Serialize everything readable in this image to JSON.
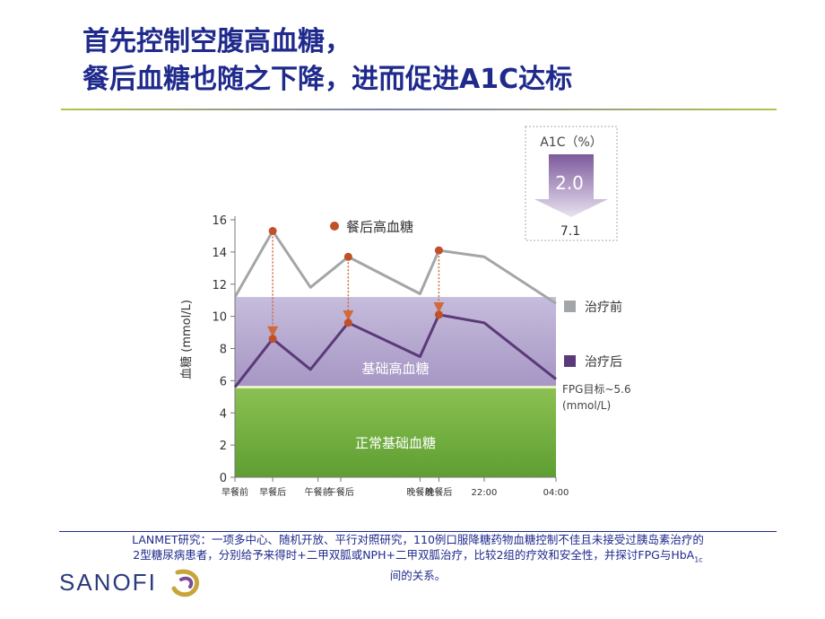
{
  "slide": {
    "title_line1": "首先控制空腹高血糖，",
    "title_line2": "餐后血糖也随之下降，进而促进A1C达标",
    "footnote_line1": "LANMET研究：一项多中心、随机开放、平行对照研究，110例口服降糖药物血糖控制不佳且未接受过胰岛素治疗的",
    "footnote_line2": "2型糖尿病患者，分别给予来得时+二甲双胍或NPH+二甲双胍治疗，比较2组的疗效和安全性，并探讨FPG与HbA",
    "footnote_sub": "1c",
    "footnote_line3": "间的关系。",
    "logo_text": "SANOFI",
    "logo_mark": "sanofi-swirl-icon"
  },
  "chart_data": {
    "type": "line",
    "ylabel": "血糖 (mmol/L)",
    "ylim": [
      0,
      16
    ],
    "yticks": [
      0,
      2,
      4,
      6,
      8,
      10,
      12,
      14,
      16
    ],
    "categories": [
      "早餐前",
      "早餐后",
      "午餐前",
      "午餐后",
      "晚餐前",
      "晚餐后",
      "22:00",
      "04:00"
    ],
    "x": [
      0,
      1,
      2,
      3,
      4.9,
      5.4,
      6.6,
      8.5
    ],
    "x_label_positions": [
      0,
      1,
      2.2,
      2.8,
      4.9,
      5.4,
      6.6,
      8.5
    ],
    "xlim": [
      0,
      8.5
    ],
    "series": [
      {
        "name": "治疗前",
        "color": "#a3a6a8",
        "values": [
          11.2,
          15.3,
          11.8,
          13.7,
          11.4,
          14.1,
          13.7,
          10.8
        ]
      },
      {
        "name": "治疗后",
        "color": "#5a3a78",
        "values": [
          5.6,
          8.6,
          6.7,
          9.6,
          7.5,
          10.1,
          9.6,
          6.1
        ]
      }
    ],
    "highlighted_points": {
      "label": "餐后高血糖",
      "color": "#c0502a",
      "before_x": [
        1,
        3,
        5.4
      ],
      "before_y": [
        15.3,
        13.7,
        14.1
      ],
      "after_y": [
        8.6,
        9.6,
        10.1
      ]
    },
    "bands": [
      {
        "label": "正常基础血糖",
        "from": 0,
        "to": 5.6,
        "color": "#7ab342"
      },
      {
        "label": "基础高血糖",
        "from": 5.6,
        "to": 11.2,
        "color": "#b7a8cf"
      }
    ],
    "fpg_target_label": "FPG目标~5.6\n(mmol/L)",
    "a1c_box": {
      "title": "A1C（%）",
      "reduction": "2.0",
      "baseline": "7.1"
    }
  }
}
